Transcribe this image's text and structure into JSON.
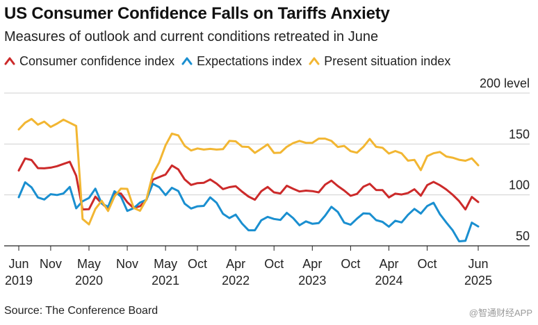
{
  "title": "US Consumer Confidence Falls on Tariffs Anxiety",
  "subtitle": "Measures of outlook and current conditions retreated in June",
  "source": "Source: The Conference Board",
  "watermark": "@智通财经APP",
  "chart_data": {
    "type": "line",
    "title": "US Consumer Confidence Falls on Tariffs Anxiety",
    "subtitle": "Measures of outlook and current conditions retreated in June",
    "y_unit_label": "level",
    "ylim": [
      50,
      200
    ],
    "y_ticks": [
      50,
      100,
      150,
      200
    ],
    "grid": true,
    "legend_position": "top-left",
    "x_start": "2019-06",
    "x_end": "2025-06",
    "x_ticks": [
      {
        "date": "2019-06",
        "label": "Jun",
        "year": "2019"
      },
      {
        "date": "2019-11",
        "label": "Nov",
        "year": ""
      },
      {
        "date": "2020-05",
        "label": "May",
        "year": "2020"
      },
      {
        "date": "2020-11",
        "label": "Nov",
        "year": ""
      },
      {
        "date": "2021-05",
        "label": "May",
        "year": "2021"
      },
      {
        "date": "2021-10",
        "label": "Oct",
        "year": ""
      },
      {
        "date": "2022-04",
        "label": "Apr",
        "year": "2022"
      },
      {
        "date": "2022-10",
        "label": "Oct",
        "year": ""
      },
      {
        "date": "2023-04",
        "label": "Apr",
        "year": "2023"
      },
      {
        "date": "2023-10",
        "label": "Oct",
        "year": ""
      },
      {
        "date": "2024-04",
        "label": "Apr",
        "year": "2024"
      },
      {
        "date": "2024-10",
        "label": "Oct",
        "year": ""
      },
      {
        "date": "2025-06",
        "label": "Jun",
        "year": "2025"
      }
    ],
    "series": [
      {
        "name": "Consumer confidence index",
        "color": "#cc2a2a",
        "points": [
          [
            "2019-06",
            124
          ],
          [
            "2019-07",
            135.8
          ],
          [
            "2019-08",
            134.2
          ],
          [
            "2019-09",
            126.3
          ],
          [
            "2019-10",
            126.1
          ],
          [
            "2019-11",
            126.8
          ],
          [
            "2019-12",
            128.2
          ],
          [
            "2020-01",
            130.4
          ],
          [
            "2020-02",
            132.6
          ],
          [
            "2020-03",
            118.8
          ],
          [
            "2020-04",
            85.7
          ],
          [
            "2020-05",
            85.9
          ],
          [
            "2020-06",
            98.3
          ],
          [
            "2020-07",
            91.7
          ],
          [
            "2020-08",
            86.3
          ],
          [
            "2020-09",
            101.3
          ],
          [
            "2020-10",
            101.4
          ],
          [
            "2020-11",
            92.9
          ],
          [
            "2020-12",
            87.1
          ],
          [
            "2021-01",
            88.9
          ],
          [
            "2021-02",
            95.2
          ],
          [
            "2021-03",
            114.9
          ],
          [
            "2021-04",
            117.5
          ],
          [
            "2021-05",
            120
          ],
          [
            "2021-06",
            128.9
          ],
          [
            "2021-07",
            125.1
          ],
          [
            "2021-08",
            115.2
          ],
          [
            "2021-09",
            109.8
          ],
          [
            "2021-10",
            111.6
          ],
          [
            "2021-11",
            111.9
          ],
          [
            "2021-12",
            115.2
          ],
          [
            "2022-01",
            111.1
          ],
          [
            "2022-02",
            105.7
          ],
          [
            "2022-03",
            107.6
          ],
          [
            "2022-04",
            108.6
          ],
          [
            "2022-05",
            103.2
          ],
          [
            "2022-06",
            98.4
          ],
          [
            "2022-07",
            95.3
          ],
          [
            "2022-08",
            103.6
          ],
          [
            "2022-09",
            107.8
          ],
          [
            "2022-10",
            102.5
          ],
          [
            "2022-11",
            101.4
          ],
          [
            "2022-12",
            109
          ],
          [
            "2023-01",
            106
          ],
          [
            "2023-02",
            103.4
          ],
          [
            "2023-03",
            104.2
          ],
          [
            "2023-04",
            103.7
          ],
          [
            "2023-05",
            102.5
          ],
          [
            "2023-06",
            110.1
          ],
          [
            "2023-07",
            114
          ],
          [
            "2023-08",
            108.7
          ],
          [
            "2023-09",
            104.3
          ],
          [
            "2023-10",
            99.1
          ],
          [
            "2023-11",
            101
          ],
          [
            "2023-12",
            108
          ],
          [
            "2024-01",
            110.9
          ],
          [
            "2024-02",
            104.8
          ],
          [
            "2024-03",
            104.7
          ],
          [
            "2024-04",
            97.5
          ],
          [
            "2024-05",
            101.3
          ],
          [
            "2024-06",
            100.4
          ],
          [
            "2024-07",
            101.9
          ],
          [
            "2024-08",
            105.6
          ],
          [
            "2024-09",
            99.2
          ],
          [
            "2024-10",
            109.6
          ],
          [
            "2024-11",
            112.8
          ],
          [
            "2024-12",
            109.5
          ],
          [
            "2025-01",
            105.3
          ],
          [
            "2025-02",
            100.1
          ],
          [
            "2025-03",
            93.9
          ],
          [
            "2025-04",
            85.7
          ],
          [
            "2025-05",
            98
          ],
          [
            "2025-06",
            93
          ]
        ]
      },
      {
        "name": "Expectations index",
        "color": "#1a8fd0",
        "points": [
          [
            "2019-06",
            97.7
          ],
          [
            "2019-07",
            112.4
          ],
          [
            "2019-08",
            107.4
          ],
          [
            "2019-09",
            97.5
          ],
          [
            "2019-10",
            95.5
          ],
          [
            "2019-11",
            100.7
          ],
          [
            "2019-12",
            99.9
          ],
          [
            "2020-01",
            101.4
          ],
          [
            "2020-02",
            107.8
          ],
          [
            "2020-03",
            86.8
          ],
          [
            "2020-04",
            93.8
          ],
          [
            "2020-05",
            97
          ],
          [
            "2020-06",
            106.1
          ],
          [
            "2020-07",
            91.5
          ],
          [
            "2020-08",
            88.3
          ],
          [
            "2020-09",
            103.6
          ],
          [
            "2020-10",
            98.5
          ],
          [
            "2020-11",
            84.3
          ],
          [
            "2020-12",
            87
          ],
          [
            "2021-01",
            92.5
          ],
          [
            "2021-02",
            95.2
          ],
          [
            "2021-03",
            110.9
          ],
          [
            "2021-04",
            107.6
          ],
          [
            "2021-05",
            99.8
          ],
          [
            "2021-06",
            107
          ],
          [
            "2021-07",
            103.8
          ],
          [
            "2021-08",
            91.4
          ],
          [
            "2021-09",
            86.6
          ],
          [
            "2021-10",
            88.8
          ],
          [
            "2021-11",
            89.2
          ],
          [
            "2021-12",
            97.6
          ],
          [
            "2022-01",
            92.3
          ],
          [
            "2022-02",
            81.4
          ],
          [
            "2022-03",
            77.3
          ],
          [
            "2022-04",
            80.6
          ],
          [
            "2022-05",
            71.8
          ],
          [
            "2022-06",
            65.3
          ],
          [
            "2022-07",
            65.3
          ],
          [
            "2022-08",
            75.1
          ],
          [
            "2022-09",
            78.4
          ],
          [
            "2022-10",
            76.4
          ],
          [
            "2022-11",
            75.4
          ],
          [
            "2022-12",
            82.4
          ],
          [
            "2023-01",
            77.2
          ],
          [
            "2023-02",
            70.2
          ],
          [
            "2023-03",
            74
          ],
          [
            "2023-04",
            71.7
          ],
          [
            "2023-05",
            72.3
          ],
          [
            "2023-06",
            79.6
          ],
          [
            "2023-07",
            88.3
          ],
          [
            "2023-08",
            83.3
          ],
          [
            "2023-09",
            72.8
          ],
          [
            "2023-10",
            70.7
          ],
          [
            "2023-11",
            76.7
          ],
          [
            "2023-12",
            81.9
          ],
          [
            "2024-01",
            81.5
          ],
          [
            "2024-02",
            75.2
          ],
          [
            "2024-03",
            73.5
          ],
          [
            "2024-04",
            68.8
          ],
          [
            "2024-05",
            74.6
          ],
          [
            "2024-06",
            73
          ],
          [
            "2024-07",
            80.5
          ],
          [
            "2024-08",
            86.3
          ],
          [
            "2024-09",
            81.7
          ],
          [
            "2024-10",
            89.1
          ],
          [
            "2024-11",
            92.3
          ],
          [
            "2024-12",
            81.1
          ],
          [
            "2025-01",
            72.9
          ],
          [
            "2025-02",
            65.2
          ],
          [
            "2025-03",
            54.4
          ],
          [
            "2025-04",
            55
          ],
          [
            "2025-05",
            72.8
          ],
          [
            "2025-06",
            69
          ]
        ]
      },
      {
        "name": "Present situation index",
        "color": "#f2b632",
        "points": [
          [
            "2019-06",
            164.3
          ],
          [
            "2019-07",
            170.9
          ],
          [
            "2019-08",
            174.6
          ],
          [
            "2019-09",
            169
          ],
          [
            "2019-10",
            172
          ],
          [
            "2019-11",
            166.7
          ],
          [
            "2019-12",
            170
          ],
          [
            "2020-01",
            173.9
          ],
          [
            "2020-02",
            170.8
          ],
          [
            "2020-03",
            167.7
          ],
          [
            "2020-04",
            76.4
          ],
          [
            "2020-05",
            71.1
          ],
          [
            "2020-06",
            86.2
          ],
          [
            "2020-07",
            94.2
          ],
          [
            "2020-08",
            84.2
          ],
          [
            "2020-09",
            98.5
          ],
          [
            "2020-10",
            106.2
          ],
          [
            "2020-11",
            105.9
          ],
          [
            "2020-12",
            87.2
          ],
          [
            "2021-01",
            84.4
          ],
          [
            "2021-02",
            95.5
          ],
          [
            "2021-03",
            120.2
          ],
          [
            "2021-04",
            131.9
          ],
          [
            "2021-05",
            148.7
          ],
          [
            "2021-06",
            160.2
          ],
          [
            "2021-07",
            158.4
          ],
          [
            "2021-08",
            148.2
          ],
          [
            "2021-09",
            143.6
          ],
          [
            "2021-10",
            145.6
          ],
          [
            "2021-11",
            144.5
          ],
          [
            "2021-12",
            145.2
          ],
          [
            "2022-01",
            144.5
          ],
          [
            "2022-02",
            144.9
          ],
          [
            "2022-03",
            153
          ],
          [
            "2022-04",
            152.6
          ],
          [
            "2022-05",
            147.4
          ],
          [
            "2022-06",
            147.1
          ],
          [
            "2022-07",
            141.3
          ],
          [
            "2022-08",
            145.4
          ],
          [
            "2022-09",
            149.6
          ],
          [
            "2022-10",
            141.2
          ],
          [
            "2022-11",
            141.4
          ],
          [
            "2022-12",
            147.2
          ],
          [
            "2023-01",
            150.9
          ],
          [
            "2023-02",
            153
          ],
          [
            "2023-03",
            151.1
          ],
          [
            "2023-04",
            151.1
          ],
          [
            "2023-05",
            155.3
          ],
          [
            "2023-06",
            155.3
          ],
          [
            "2023-07",
            153
          ],
          [
            "2023-08",
            147.1
          ],
          [
            "2023-09",
            148.1
          ],
          [
            "2023-10",
            142.9
          ],
          [
            "2023-11",
            141.4
          ],
          [
            "2023-12",
            147.2
          ],
          [
            "2024-01",
            154.9
          ],
          [
            "2024-02",
            147.2
          ],
          [
            "2024-03",
            146.3
          ],
          [
            "2024-04",
            140.6
          ],
          [
            "2024-05",
            143.1
          ],
          [
            "2024-06",
            140.8
          ],
          [
            "2024-07",
            133.6
          ],
          [
            "2024-08",
            134.4
          ],
          [
            "2024-09",
            124.3
          ],
          [
            "2024-10",
            138
          ],
          [
            "2024-11",
            140.9
          ],
          [
            "2024-12",
            142.2
          ],
          [
            "2025-01",
            137.7
          ],
          [
            "2025-02",
            136.5
          ],
          [
            "2025-03",
            134.5
          ],
          [
            "2025-04",
            133.5
          ],
          [
            "2025-05",
            135.9
          ],
          [
            "2025-06",
            129.1
          ]
        ]
      }
    ]
  }
}
